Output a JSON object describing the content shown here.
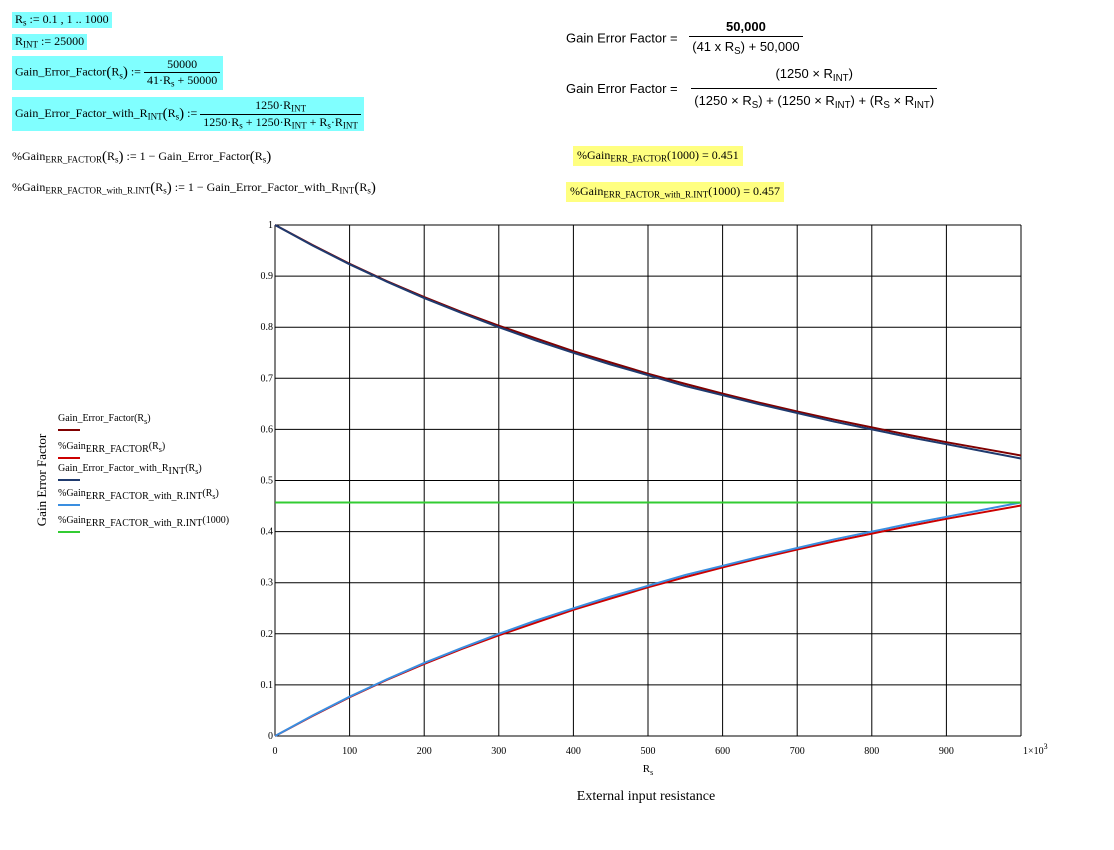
{
  "defs": {
    "rs_range": {
      "lhs": "R",
      "lhs_sub": "s",
      "rhs": " := 0.1 , 1 .. 1000"
    },
    "rint": {
      "lhs": "R",
      "lhs_sub": "INT",
      "rhs": " := 25000"
    },
    "gef": {
      "lhs": "Gain_Error_Factor",
      "arg": "R",
      "arg_sub": "s",
      "assign": " :=",
      "num": "50000",
      "den_a": "41·R",
      "den_sub": "s",
      "den_b": " + 50000"
    },
    "gef_rint": {
      "lhs": "Gain_Error_Factor_with_R",
      "lhs_sub": "INT",
      "arg": "R",
      "arg_sub": "s",
      "assign": " :=",
      "num_a": "1250·R",
      "num_sub": "INT",
      "den_a": "1250·R",
      "den_sub1": "s",
      "den_b": " + 1250·R",
      "den_sub2": "INT",
      "den_c": " + R",
      "den_sub3": "s",
      "den_d": "·R",
      "den_sub4": "INT"
    },
    "pct1": {
      "lhs_a": "%Gain",
      "lhs_sub": "ERR_FACTOR",
      "arg": "R",
      "arg_sub": "s",
      "rhs_a": " := 1 − Gain_Error_Factor",
      "rarg": "R",
      "rarg_sub": "s"
    },
    "pct2": {
      "lhs_a": "%Gain",
      "lhs_sub": "ERR_FACTOR_with_R.INT",
      "arg": "R",
      "arg_sub": "s",
      "rhs_a": " := 1 − Gain_Error_Factor_with_R",
      "rhs_sub": "INT",
      "rarg": "R",
      "rarg_sub": "s"
    }
  },
  "formulas": {
    "f1": {
      "label": "Gain Error Factor  =",
      "num": "50,000",
      "den_a": "(41 x R",
      "den_sub": "S",
      "den_b": ")  + 50,000"
    },
    "f2": {
      "label": "Gain Error Factor =",
      "num_a": "(1250 × R",
      "num_sub": "INT",
      "num_b": ")",
      "den_a": "(1250 × R",
      "den_sub1": "S",
      "den_b": ") + (1250 × R",
      "den_sub2": "INT",
      "den_c": ") + (R",
      "den_sub3": "S",
      "den_d": " × R",
      "den_sub4": "INT",
      "den_e": ")"
    }
  },
  "results": {
    "r1": {
      "lhs_a": "%Gain",
      "lhs_sub": "ERR_FACTOR",
      "arg": "(1000)",
      "value": " = 0.451"
    },
    "r2": {
      "lhs_a": "%Gain",
      "lhs_sub": "ERR_FACTOR_with_R.INT",
      "arg": "(1000)",
      "value": " = 0.457"
    }
  },
  "colors": {
    "cyan_highlight": "#80ffff",
    "yellow_highlight": "#ffff80"
  },
  "chart_data": {
    "type": "line",
    "title": "",
    "xlabel": "R",
    "xlabel_sub": "s",
    "xlabel2": "External input resistance",
    "ylabel": "Gain Error Factor",
    "xlim": [
      0,
      1000
    ],
    "ylim": [
      0,
      1
    ],
    "grid": true,
    "x_ticks": [
      "0",
      "100",
      "200",
      "300",
      "400",
      "500",
      "600",
      "700",
      "800",
      "900",
      "1×10"
    ],
    "x_tick_last_sup": "3",
    "y_ticks": [
      "0",
      "0.1",
      "0.2",
      "0.3",
      "0.4",
      "0.5",
      "0.6",
      "0.7",
      "0.8",
      "0.9",
      "1"
    ],
    "legend_position": "left",
    "x": [
      0.1,
      50,
      100,
      150,
      200,
      250,
      300,
      350,
      400,
      450,
      500,
      550,
      600,
      650,
      700,
      750,
      800,
      850,
      900,
      950,
      1000
    ],
    "series": [
      {
        "name_a": "Gain_Error_Factor",
        "name_arg": "R",
        "name_arg_sub": "s",
        "color": "#800000",
        "values": [
          1.0,
          0.961,
          0.924,
          0.89,
          0.859,
          0.83,
          0.803,
          0.778,
          0.753,
          0.731,
          0.709,
          0.689,
          0.67,
          0.652,
          0.635,
          0.619,
          0.604,
          0.589,
          0.575,
          0.562,
          0.549
        ]
      },
      {
        "name_a": "%Gain",
        "name_sub": "ERR_FACTOR",
        "name_arg": "R",
        "name_arg_sub": "s",
        "color": "#cc0000",
        "values": [
          0.0,
          0.039,
          0.076,
          0.11,
          0.141,
          0.17,
          0.197,
          0.222,
          0.247,
          0.269,
          0.291,
          0.311,
          0.33,
          0.348,
          0.365,
          0.381,
          0.396,
          0.411,
          0.425,
          0.438,
          0.451
        ]
      },
      {
        "name_a": "Gain_Error_Factor_with_R",
        "name_sub": "INT",
        "name_arg": "R",
        "name_arg_sub": "s",
        "color": "#1f3a6e",
        "values": [
          1.0,
          0.96,
          0.923,
          0.889,
          0.857,
          0.828,
          0.8,
          0.774,
          0.75,
          0.727,
          0.706,
          0.685,
          0.667,
          0.649,
          0.632,
          0.615,
          0.6,
          0.585,
          0.571,
          0.557,
          0.543
        ]
      },
      {
        "name_a": "%Gain",
        "name_sub": "ERR_FACTOR_with_R.INT",
        "name_arg": "R",
        "name_arg_sub": "s",
        "color": "#3a8ee0",
        "values": [
          0.0,
          0.04,
          0.077,
          0.111,
          0.143,
          0.172,
          0.2,
          0.226,
          0.25,
          0.273,
          0.294,
          0.315,
          0.333,
          0.351,
          0.368,
          0.385,
          0.4,
          0.415,
          0.429,
          0.443,
          0.457
        ]
      },
      {
        "name_a": "%Gain",
        "name_sub": "ERR_FACTOR_with_R.INT",
        "name_arg": "(1000)",
        "color": "#33cc33",
        "values": [
          0.457,
          0.457,
          0.457,
          0.457,
          0.457,
          0.457,
          0.457,
          0.457,
          0.457,
          0.457,
          0.457,
          0.457,
          0.457,
          0.457,
          0.457,
          0.457,
          0.457,
          0.457,
          0.457,
          0.457,
          0.457
        ]
      }
    ]
  }
}
